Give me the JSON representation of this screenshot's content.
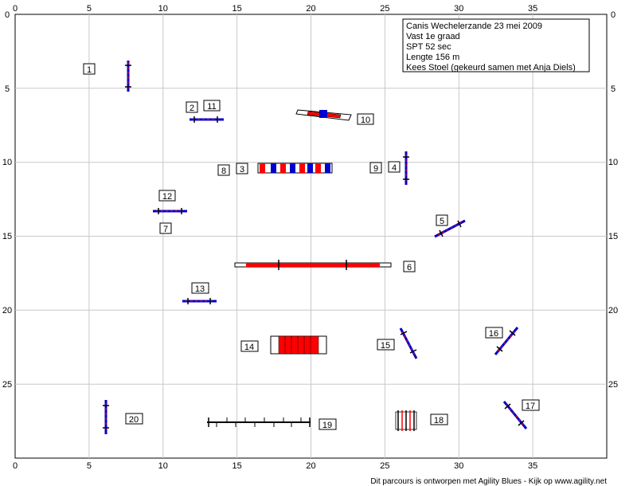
{
  "info": {
    "lines": [
      "Canis Wechelerzande 23 mei 2009",
      "Vast 1e graad",
      "SPT 52 sec",
      "Lengte 156 m",
      "Kees Stoel (gekeurd samen met Anja Diels)"
    ]
  },
  "axes": {
    "x_ticks": [
      "0",
      "5",
      "10",
      "15",
      "20",
      "25",
      "30",
      "35"
    ],
    "y_ticks": [
      "0",
      "5",
      "10",
      "15",
      "20",
      "25"
    ]
  },
  "footer": "Dit parcours is ontworpen met Agility Blues - Kijk op www.agility.net",
  "obstacle_numbers": [
    "1",
    "2",
    "3",
    "4",
    "5",
    "6",
    "7",
    "8",
    "9",
    "10",
    "11",
    "12",
    "13",
    "14",
    "15",
    "16",
    "17",
    "18",
    "19"
  ],
  "colors": {
    "grid": "#c8c8c8",
    "red": "#ff0000",
    "blue": "#0000cc",
    "black": "#000000",
    "white": "#ffffff"
  }
}
